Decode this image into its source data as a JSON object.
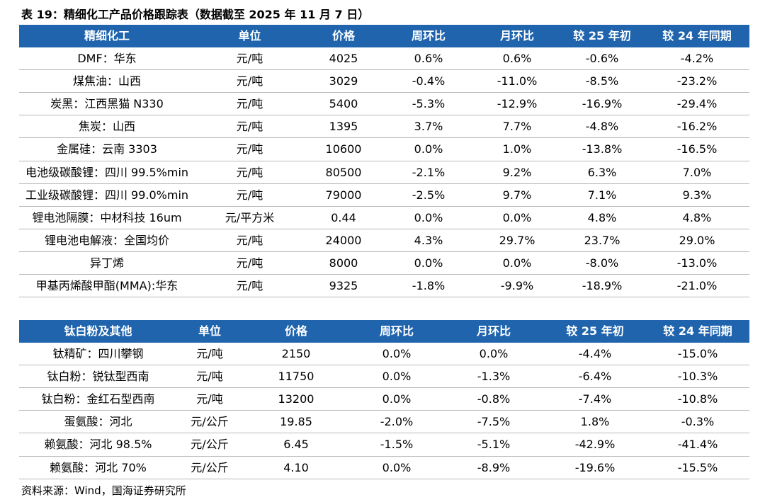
{
  "title": "表 19：精细化工产品价格跟踪表（数据截至 2025 年 11 月 7 日）",
  "tables": [
    {
      "header": [
        "精细化工",
        "单位",
        "价格",
        "周环比",
        "月环比",
        "较 25 年初",
        "较 24 年同期"
      ],
      "rows": [
        [
          "DMF：华东",
          "元/吨",
          "4025",
          "0.6%",
          "0.6%",
          "-0.6%",
          "-4.2%"
        ],
        [
          "煤焦油：山西",
          "元/吨",
          "3029",
          "-0.4%",
          "-11.0%",
          "-8.5%",
          "-23.2%"
        ],
        [
          "炭黑：江西黑猫 N330",
          "元/吨",
          "5400",
          "-5.3%",
          "-12.9%",
          "-16.9%",
          "-29.4%"
        ],
        [
          "焦炭：山西",
          "元/吨",
          "1395",
          "3.7%",
          "7.7%",
          "-4.8%",
          "-16.2%"
        ],
        [
          "金属硅：云南 3303",
          "元/吨",
          "10600",
          "0.0%",
          "1.0%",
          "-13.8%",
          "-16.5%"
        ],
        [
          "电池级碳酸锂：四川 99.5%min",
          "元/吨",
          "80500",
          "-2.1%",
          "9.2%",
          "6.3%",
          "7.0%"
        ],
        [
          "工业级碳酸锂：四川 99.0%min",
          "元/吨",
          "79000",
          "-2.5%",
          "9.7%",
          "7.1%",
          "9.3%"
        ],
        [
          "锂电池隔膜：中材科技 16um",
          "元/平方米",
          "0.44",
          "0.0%",
          "0.0%",
          "4.8%",
          "4.8%"
        ],
        [
          "锂电池电解液：全国均价",
          "元/吨",
          "24000",
          "4.3%",
          "29.7%",
          "23.7%",
          "29.0%"
        ],
        [
          "异丁烯",
          "元/吨",
          "8000",
          "0.0%",
          "0.0%",
          "-8.0%",
          "-13.0%"
        ],
        [
          "甲基丙烯酸甲酯(MMA):华东",
          "元/吨",
          "9325",
          "-1.8%",
          "-9.9%",
          "-18.9%",
          "-21.0%"
        ]
      ]
    },
    {
      "header": [
        "钛白粉及其他",
        "单位",
        "价格",
        "周环比",
        "月环比",
        "较 25 年初",
        "较 24 年同期"
      ],
      "rows": [
        [
          "钛精矿：四川攀钢",
          "元/吨",
          "2150",
          "0.0%",
          "0.0%",
          "-4.4%",
          "-15.0%"
        ],
        [
          "钛白粉：锐钛型西南",
          "元/吨",
          "11750",
          "0.0%",
          "-1.3%",
          "-6.4%",
          "-10.3%"
        ],
        [
          "钛白粉：金红石型西南",
          "元/吨",
          "13200",
          "0.0%",
          "-0.8%",
          "-7.4%",
          "-10.8%"
        ],
        [
          "蛋氨酸：河北",
          "元/公斤",
          "19.85",
          "-2.0%",
          "-7.5%",
          "1.8%",
          "-0.3%"
        ],
        [
          "赖氨酸：河北 98.5%",
          "元/公斤",
          "6.45",
          "-1.5%",
          "-5.1%",
          "-42.9%",
          "-41.4%"
        ],
        [
          "赖氨酸：河北 70%",
          "元/公斤",
          "4.10",
          "0.0%",
          "-8.9%",
          "-19.6%",
          "-15.5%"
        ]
      ]
    }
  ],
  "source": "资料来源：Wind，国海证券研究所"
}
